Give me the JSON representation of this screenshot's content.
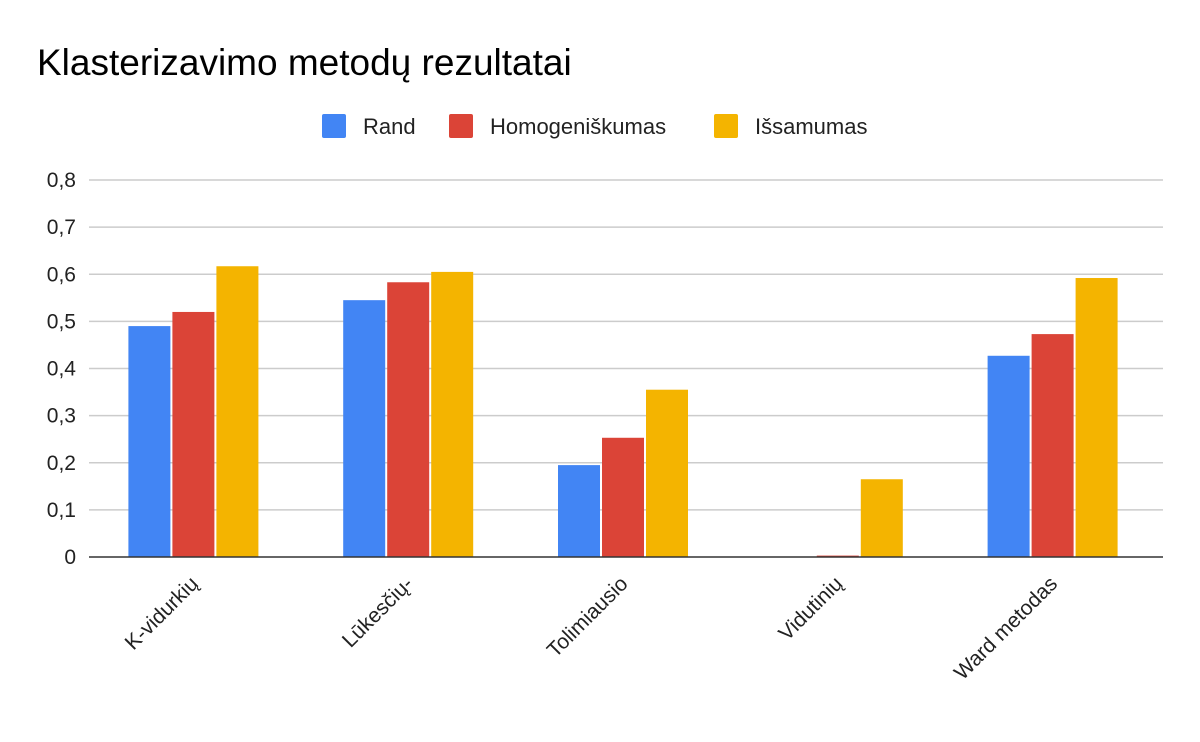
{
  "chart_data": {
    "type": "bar",
    "title": "Klasterizavimo metodų rezultatai",
    "xlabel": "",
    "ylabel": "",
    "categories": [
      "K-vidurkių",
      "Lūkesčių-",
      "Tolimiausio",
      "Vidutinių",
      "Ward metodas"
    ],
    "series": [
      {
        "name": "Rand",
        "color": "#4285f4",
        "values": [
          0.49,
          0.545,
          0.195,
          0.0,
          0.427
        ]
      },
      {
        "name": "Homogeniškumas",
        "color": "#db4437",
        "values": [
          0.52,
          0.583,
          0.253,
          0.003,
          0.473
        ]
      },
      {
        "name": "Išsamumas",
        "color": "#f4b400",
        "values": [
          0.617,
          0.605,
          0.355,
          0.165,
          0.592
        ]
      }
    ],
    "ylim": [
      0,
      0.8
    ],
    "yticks": [
      0,
      0.1,
      0.2,
      0.3,
      0.4,
      0.5,
      0.6,
      0.7,
      0.8
    ],
    "ytick_labels": [
      "0",
      "0,1",
      "0,2",
      "0,3",
      "0,4",
      "0,5",
      "0,6",
      "0,7",
      "0,8"
    ],
    "grid": true,
    "legend_position": "top-center"
  }
}
